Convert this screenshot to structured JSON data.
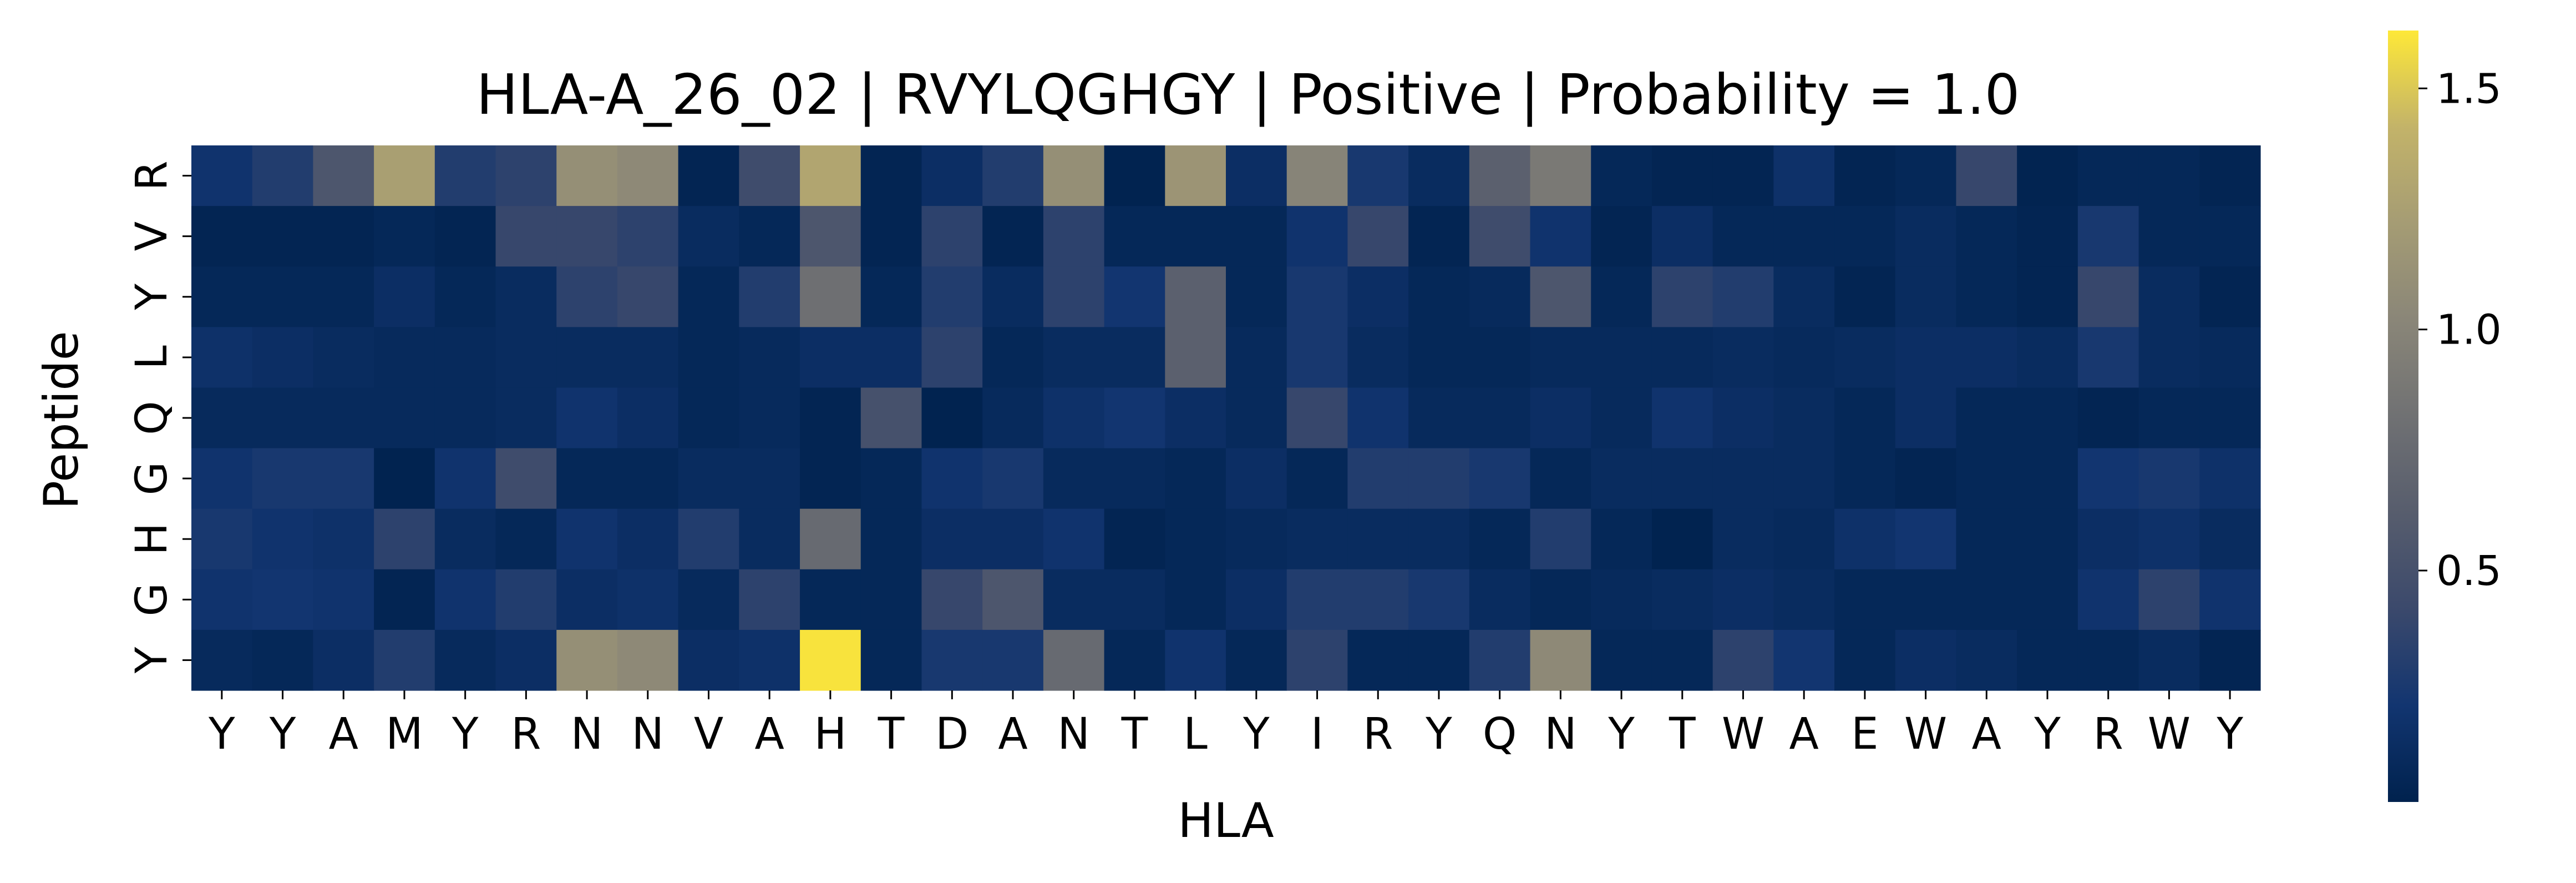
{
  "chart_data": {
    "type": "heatmap",
    "title": "HLA-A_26_02 | RVYLQGHGY | Positive | Probability = 1.0",
    "xlabel": "HLA",
    "ylabel": "Peptide",
    "x_tick_labels": [
      "Y",
      "Y",
      "A",
      "M",
      "Y",
      "R",
      "N",
      "N",
      "V",
      "A",
      "H",
      "T",
      "D",
      "A",
      "N",
      "T",
      "L",
      "Y",
      "I",
      "R",
      "Y",
      "Q",
      "N",
      "Y",
      "T",
      "W",
      "A",
      "E",
      "W",
      "A",
      "Y",
      "R",
      "W",
      "Y"
    ],
    "y_tick_labels": [
      "R",
      "V",
      "Y",
      "L",
      "Q",
      "G",
      "H",
      "G",
      "Y"
    ],
    "values": [
      [
        0.2,
        0.3,
        0.55,
        1.25,
        0.3,
        0.35,
        1.1,
        1.05,
        0.05,
        0.45,
        1.3,
        0.05,
        0.15,
        0.3,
        1.1,
        0.03,
        1.15,
        0.15,
        1.0,
        0.25,
        0.12,
        0.65,
        0.9,
        0.08,
        0.05,
        0.05,
        0.18,
        0.05,
        0.08,
        0.4,
        0.04,
        0.08,
        0.08,
        0.05
      ],
      [
        0.05,
        0.05,
        0.05,
        0.08,
        0.05,
        0.4,
        0.4,
        0.35,
        0.12,
        0.08,
        0.55,
        0.05,
        0.35,
        0.05,
        0.35,
        0.08,
        0.08,
        0.08,
        0.2,
        0.4,
        0.05,
        0.45,
        0.2,
        0.05,
        0.15,
        0.08,
        0.08,
        0.08,
        0.12,
        0.08,
        0.05,
        0.25,
        0.08,
        0.08
      ],
      [
        0.08,
        0.08,
        0.08,
        0.15,
        0.08,
        0.12,
        0.35,
        0.4,
        0.08,
        0.3,
        0.8,
        0.08,
        0.3,
        0.12,
        0.35,
        0.22,
        0.65,
        0.08,
        0.25,
        0.15,
        0.08,
        0.1,
        0.55,
        0.08,
        0.35,
        0.3,
        0.12,
        0.05,
        0.12,
        0.08,
        0.05,
        0.4,
        0.12,
        0.05
      ],
      [
        0.18,
        0.15,
        0.12,
        0.1,
        0.1,
        0.12,
        0.12,
        0.12,
        0.08,
        0.1,
        0.15,
        0.15,
        0.35,
        0.08,
        0.12,
        0.12,
        0.65,
        0.1,
        0.25,
        0.12,
        0.08,
        0.08,
        0.1,
        0.1,
        0.1,
        0.12,
        0.1,
        0.12,
        0.15,
        0.15,
        0.12,
        0.25,
        0.12,
        0.1
      ],
      [
        0.1,
        0.1,
        0.1,
        0.1,
        0.1,
        0.12,
        0.2,
        0.15,
        0.08,
        0.1,
        0.05,
        0.5,
        0.03,
        0.1,
        0.18,
        0.22,
        0.15,
        0.1,
        0.4,
        0.2,
        0.1,
        0.1,
        0.15,
        0.1,
        0.2,
        0.15,
        0.12,
        0.08,
        0.15,
        0.08,
        0.08,
        0.05,
        0.08,
        0.08
      ],
      [
        0.2,
        0.25,
        0.25,
        0.03,
        0.2,
        0.45,
        0.08,
        0.08,
        0.12,
        0.12,
        0.05,
        0.08,
        0.2,
        0.25,
        0.1,
        0.1,
        0.08,
        0.15,
        0.08,
        0.3,
        0.3,
        0.25,
        0.08,
        0.12,
        0.12,
        0.12,
        0.12,
        0.08,
        0.05,
        0.08,
        0.08,
        0.22,
        0.25,
        0.18
      ],
      [
        0.25,
        0.2,
        0.18,
        0.35,
        0.12,
        0.08,
        0.2,
        0.15,
        0.3,
        0.12,
        0.75,
        0.08,
        0.15,
        0.15,
        0.2,
        0.05,
        0.08,
        0.1,
        0.12,
        0.12,
        0.12,
        0.08,
        0.3,
        0.08,
        0.03,
        0.12,
        0.1,
        0.18,
        0.22,
        0.08,
        0.08,
        0.15,
        0.18,
        0.12
      ],
      [
        0.2,
        0.22,
        0.2,
        0.05,
        0.2,
        0.3,
        0.15,
        0.18,
        0.1,
        0.35,
        0.08,
        0.08,
        0.4,
        0.55,
        0.12,
        0.12,
        0.08,
        0.15,
        0.3,
        0.3,
        0.25,
        0.12,
        0.08,
        0.1,
        0.12,
        0.15,
        0.12,
        0.08,
        0.08,
        0.08,
        0.08,
        0.2,
        0.35,
        0.2
      ],
      [
        0.1,
        0.08,
        0.15,
        0.3,
        0.1,
        0.15,
        1.1,
        1.05,
        0.15,
        0.18,
        1.6,
        0.08,
        0.25,
        0.25,
        0.75,
        0.08,
        0.2,
        0.08,
        0.35,
        0.08,
        0.08,
        0.3,
        1.05,
        0.08,
        0.08,
        0.35,
        0.22,
        0.08,
        0.15,
        0.12,
        0.08,
        0.08,
        0.12,
        0.05
      ]
    ],
    "vmin": 0.02,
    "vmax": 1.62,
    "colormap": "cividis",
    "colorbar_ticks": [
      0.5,
      1.0,
      1.5
    ],
    "colorbar_tick_labels": [
      "0.5",
      "1.0",
      "1.5"
    ]
  }
}
